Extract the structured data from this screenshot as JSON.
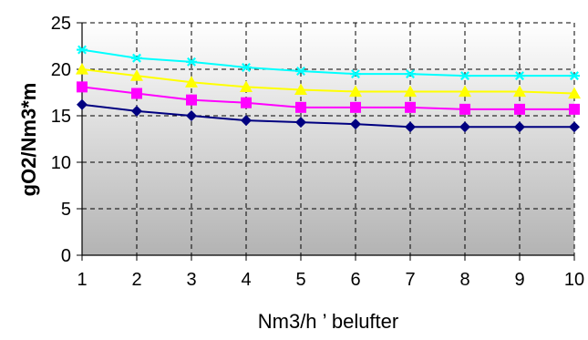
{
  "chart_data": {
    "type": "line",
    "xlabel": "Nm3/h ’ belufter",
    "ylabel": "gO2/Nm3*m",
    "x": [
      1,
      2,
      3,
      4,
      5,
      6,
      7,
      8,
      9,
      10
    ],
    "xlim": [
      1,
      10
    ],
    "ylim": [
      0,
      25
    ],
    "yticks": [
      0,
      5,
      10,
      15,
      20,
      25
    ],
    "grid": true,
    "legend": "none",
    "background": "gradient white to gray",
    "series": [
      {
        "color": "#00ffff",
        "marker": "star",
        "values": [
          22.1,
          21.2,
          20.8,
          20.2,
          19.8,
          19.5,
          19.5,
          19.3,
          19.3,
          19.3
        ]
      },
      {
        "color": "#ffff00",
        "marker": "triangle",
        "values": [
          20.0,
          19.3,
          18.6,
          18.1,
          17.8,
          17.6,
          17.6,
          17.6,
          17.6,
          17.4
        ]
      },
      {
        "color": "#ff00ff",
        "marker": "square",
        "values": [
          18.1,
          17.4,
          16.7,
          16.4,
          15.9,
          15.9,
          15.9,
          15.7,
          15.7,
          15.7
        ]
      },
      {
        "color": "#000080",
        "marker": "diamond",
        "values": [
          16.2,
          15.5,
          15.0,
          14.5,
          14.3,
          14.1,
          13.8,
          13.8,
          13.8,
          13.8
        ]
      }
    ]
  }
}
